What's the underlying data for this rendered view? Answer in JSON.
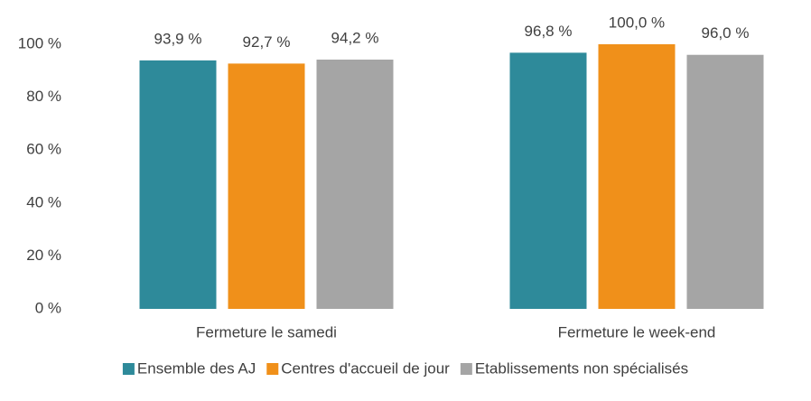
{
  "chart_data": {
    "type": "bar",
    "categories": [
      "Fermeture le samedi",
      "Fermeture le week-end"
    ],
    "series": [
      {
        "name": "Ensemble des AJ",
        "color": "#2e8a9a",
        "values": [
          93.9,
          96.8
        ],
        "value_labels": [
          "93,9 %",
          "96,8 %"
        ]
      },
      {
        "name": "Centres d'accueil de jour",
        "color": "#f0901a",
        "values": [
          92.7,
          100.0
        ],
        "value_labels": [
          "92,7 %",
          "100,0 %"
        ]
      },
      {
        "name": "Etablissements non spécialisés",
        "color": "#a5a5a5",
        "values": [
          94.2,
          96.0
        ],
        "value_labels": [
          "94,2 %",
          "96,0 %"
        ]
      }
    ],
    "ylim": [
      0,
      100
    ],
    "yticks": [
      {
        "value": 0,
        "label": "0 %"
      },
      {
        "value": 20,
        "label": "20 %"
      },
      {
        "value": 40,
        "label": "40 %"
      },
      {
        "value": 60,
        "label": "60 %"
      },
      {
        "value": 80,
        "label": "80 %"
      },
      {
        "value": 100,
        "label": "100 %"
      }
    ],
    "grid": false,
    "legend": "bottom"
  }
}
